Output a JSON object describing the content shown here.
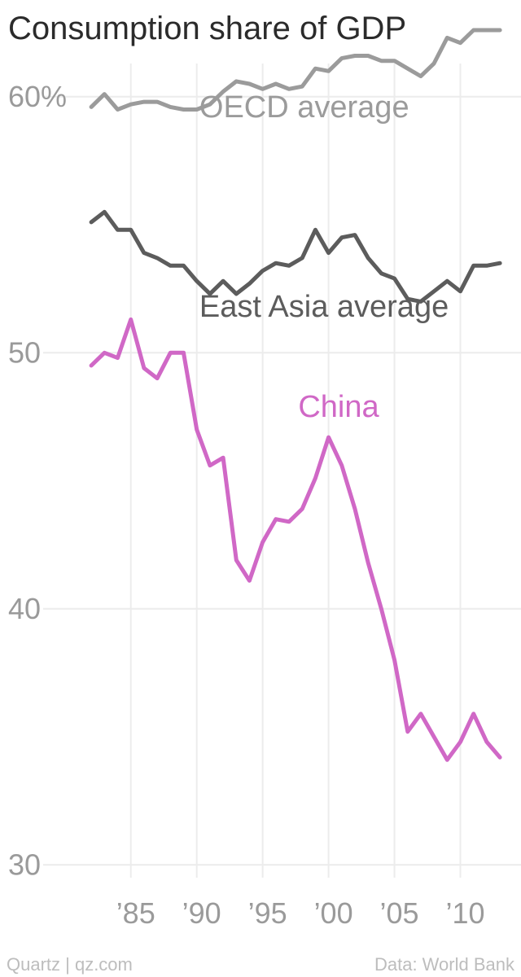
{
  "footer": {
    "source_left": "Quartz | qz.com",
    "source_right": "Data: World Bank"
  },
  "colors": {
    "oecd": "#9b9b9b",
    "east_asia": "#5c5c5c",
    "china": "#d068c6",
    "grid": "#ececec",
    "tick": "#9a9a9a"
  },
  "chart_data": {
    "type": "line",
    "title": "Consumption share of GDP",
    "xlabel": "",
    "ylabel": "",
    "xlim": [
      1980.2,
      2014.6
    ],
    "ylim": [
      29.5,
      62.6
    ],
    "y_ticks": [
      {
        "value": 60,
        "label": "60%"
      },
      {
        "value": 50,
        "label": "50"
      },
      {
        "value": 40,
        "label": "40"
      },
      {
        "value": 30,
        "label": "30"
      }
    ],
    "x_ticks": [
      {
        "value": 1985,
        "label": "’85"
      },
      {
        "value": 1990,
        "label": "’90"
      },
      {
        "value": 1995,
        "label": "’95"
      },
      {
        "value": 2000,
        "label": "’00"
      },
      {
        "value": 2005,
        "label": "’05"
      },
      {
        "value": 2010,
        "label": "’10"
      }
    ],
    "grid": true,
    "legend": "inline labels",
    "x": [
      1982,
      1983,
      1984,
      1985,
      1986,
      1987,
      1988,
      1989,
      1990,
      1991,
      1992,
      1993,
      1994,
      1995,
      1996,
      1997,
      1998,
      1999,
      2000,
      2001,
      2002,
      2003,
      2004,
      2005,
      2006,
      2007,
      2008,
      2009,
      2010,
      2011,
      2012,
      2013
    ],
    "series": [
      {
        "name": "OECD average",
        "label_x": 1990.2,
        "label_y": 59.2,
        "values": [
          59.6,
          60.1,
          59.5,
          59.7,
          59.8,
          59.8,
          59.6,
          59.5,
          59.5,
          59.7,
          60.2,
          60.6,
          60.5,
          60.3,
          60.5,
          60.3,
          60.4,
          61.1,
          61.0,
          61.5,
          61.6,
          61.6,
          61.4,
          61.4,
          61.1,
          60.8,
          61.3,
          62.3,
          62.1,
          62.6,
          62.6,
          62.6
        ]
      },
      {
        "name": "East Asia average",
        "label_x": 1990.2,
        "label_y": 51.4,
        "values": [
          55.1,
          55.5,
          54.8,
          54.8,
          53.9,
          53.7,
          53.4,
          53.4,
          52.8,
          52.3,
          52.8,
          52.3,
          52.7,
          53.2,
          53.5,
          53.4,
          53.7,
          54.8,
          53.9,
          54.5,
          54.6,
          53.7,
          53.1,
          52.9,
          52.1,
          52.0,
          52.4,
          52.8,
          52.4,
          53.4,
          53.4,
          53.5
        ]
      },
      {
        "name": "China",
        "label_x": 1997.7,
        "label_y": 47.5,
        "values": [
          49.5,
          50.0,
          49.8,
          51.3,
          49.4,
          49.0,
          50.0,
          50.0,
          47.0,
          45.6,
          45.9,
          41.9,
          41.1,
          42.6,
          43.5,
          43.4,
          43.9,
          45.1,
          46.7,
          45.6,
          43.9,
          41.8,
          40.0,
          38.0,
          35.2,
          35.9,
          35.0,
          34.1,
          34.8,
          35.9,
          34.8,
          34.2
        ]
      }
    ]
  }
}
